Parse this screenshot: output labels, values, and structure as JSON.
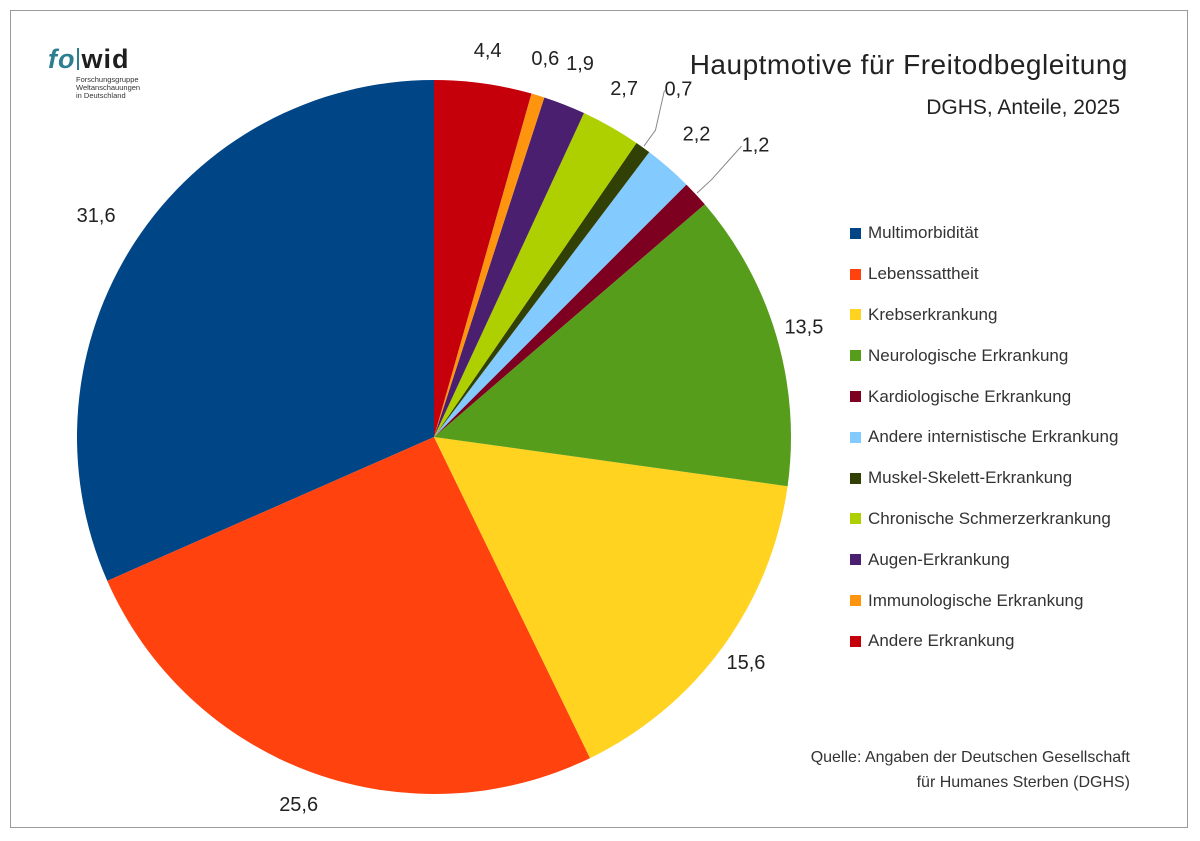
{
  "logo": {
    "part1": "fo",
    "part2": "wid",
    "sub": [
      "Forschungsgruppe",
      "Weltanschauungen",
      "in Deutschland"
    ]
  },
  "chart_data": {
    "type": "pie",
    "title": "Hauptmotive für Freitodbegleitung",
    "subtitle": "DGHS, Anteile, 2025",
    "legend_position": "right",
    "start_angle_deg": 0,
    "direction": "counterclockwise",
    "slices": [
      {
        "label": "Multimorbidität",
        "value": 31.6,
        "value_label": "31,6",
        "color": "#004586"
      },
      {
        "label": "Lebenssattheit",
        "value": 25.6,
        "value_label": "25,6",
        "color": "#ff420e"
      },
      {
        "label": "Krebserkrankung",
        "value": 15.6,
        "value_label": "15,6",
        "color": "#ffd320"
      },
      {
        "label": "Neurologische Erkrankung",
        "value": 13.5,
        "value_label": "13,5",
        "color": "#579d1c"
      },
      {
        "label": "Kardiologische Erkrankung",
        "value": 1.2,
        "value_label": "1,2",
        "color": "#7e0021"
      },
      {
        "label": "Andere internistische Erkrankung",
        "value": 2.2,
        "value_label": "2,2",
        "color": "#83caff"
      },
      {
        "label": "Muskel-Skelett-Erkrankung",
        "value": 0.7,
        "value_label": "0,7",
        "color": "#314004"
      },
      {
        "label": "Chronische Schmerzerkrankung",
        "value": 2.7,
        "value_label": "2,7",
        "color": "#aecf00"
      },
      {
        "label": "Augen-Erkrankung",
        "value": 1.9,
        "value_label": "1,9",
        "color": "#4b1f6f"
      },
      {
        "label": "Immunologische Erkrankung",
        "value": 0.6,
        "value_label": "0,6",
        "color": "#ff950e"
      },
      {
        "label": "Andere Erkrankung",
        "value": 4.4,
        "value_label": "4,4",
        "color": "#c5000b"
      }
    ]
  },
  "source": {
    "line1": "Quelle: Angaben der Deutschen Gesellschaft",
    "line2": "für Humanes Sterben (DGHS)"
  }
}
